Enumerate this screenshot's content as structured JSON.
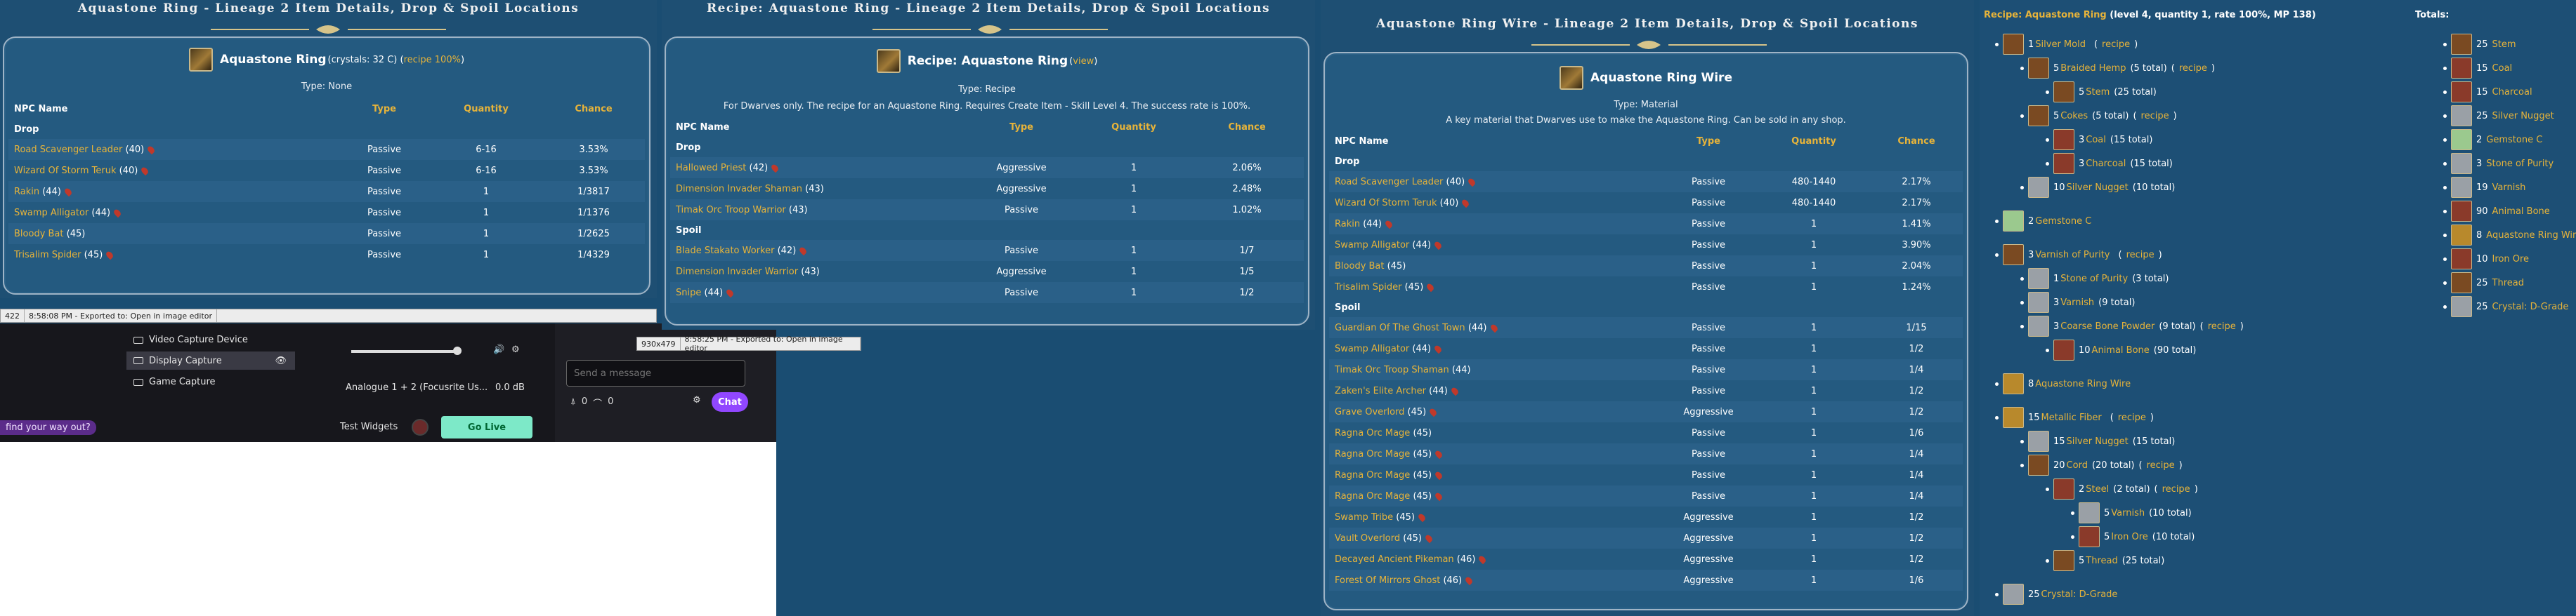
{
  "win1": {
    "title": "Aquastone Ring - Lineage 2 Item Details, Drop & Spoil Locations",
    "item_name": "Aquastone Ring",
    "item_extra_a": " (crystals: 32 C) (",
    "item_extra_link": "recipe 100%",
    "item_extra_b": ")",
    "type_line": "Type: None",
    "headers": {
      "npc": "NPC Name",
      "type": "Type",
      "qty": "Quantity",
      "chance": "Chance"
    },
    "section_drop": "Drop",
    "rows": [
      {
        "npc": "Road Scavenger Leader",
        "lvl": " (40)",
        "type": "Passive",
        "qty": "6-16",
        "chance": "3.53%",
        "pin": true
      },
      {
        "npc": "Wizard Of Storm Teruk",
        "lvl": " (40)",
        "type": "Passive",
        "qty": "6-16",
        "chance": "3.53%",
        "pin": true
      },
      {
        "npc": "Rakin",
        "lvl": " (44)",
        "type": "Passive",
        "qty": "1",
        "chance": "1/3817",
        "pin": true
      },
      {
        "npc": "Swamp Alligator",
        "lvl": " (44)",
        "type": "Passive",
        "qty": "1",
        "chance": "1/1376",
        "pin": true
      },
      {
        "npc": "Bloody Bat",
        "lvl": " (45)",
        "type": "Passive",
        "qty": "1",
        "chance": "1/2625",
        "pin": false
      },
      {
        "npc": "Trisalim Spider",
        "lvl": " (45)",
        "type": "Passive",
        "qty": "1",
        "chance": "1/4329",
        "pin": true
      }
    ],
    "status_a": "422",
    "status_b": "8:58:08 PM - Exported to: Open in image editor"
  },
  "obs": {
    "sources": [
      "Video Capture Device",
      "Display Capture",
      "Game Capture"
    ],
    "audio_label": "Analogue 1 + 2 (Focusrite Us...",
    "audio_db": "0.0 dB",
    "tip": "find your way out?",
    "test_widgets": "Test Widgets",
    "go_live": "Go Live"
  },
  "chat": {
    "placeholder": "Send a message",
    "points": "0",
    "bits": "0",
    "button": "Chat"
  },
  "win2": {
    "title": "Recipe: Aquastone Ring - Lineage 2 Item Details, Drop & Spoil Locations",
    "item_name": "Recipe: Aquastone Ring",
    "item_extra_a": " (",
    "item_extra_link": "view",
    "item_extra_b": ")",
    "type_line": "Type: Recipe",
    "desc": "For Dwarves only. The recipe for an Aquastone Ring. Requires Create Item - Skill Level 4. The success rate is 100%.",
    "headers": {
      "npc": "NPC Name",
      "type": "Type",
      "qty": "Quantity",
      "chance": "Chance"
    },
    "section_drop": "Drop",
    "drop": [
      {
        "npc": "Hallowed Priest",
        "lvl": " (42)",
        "type": "Aggressive",
        "qty": "1",
        "chance": "2.06%",
        "pin": true
      },
      {
        "npc": "Dimension Invader Shaman",
        "lvl": " (43)",
        "type": "Aggressive",
        "qty": "1",
        "chance": "2.48%",
        "pin": false
      },
      {
        "npc": "Timak Orc Troop Warrior",
        "lvl": " (43)",
        "type": "Passive",
        "qty": "1",
        "chance": "1.02%",
        "pin": false
      }
    ],
    "section_spoil": "Spoil",
    "spoil": [
      {
        "npc": "Blade Stakato Worker",
        "lvl": " (42)",
        "type": "Passive",
        "qty": "1",
        "chance": "1/7",
        "pin": true
      },
      {
        "npc": "Dimension Invader Warrior",
        "lvl": " (43)",
        "type": "Aggressive",
        "qty": "1",
        "chance": "1/5",
        "pin": false
      },
      {
        "npc": "Snipe",
        "lvl": " (44)",
        "type": "Passive",
        "qty": "1",
        "chance": "1/2",
        "pin": true
      }
    ],
    "status_a": "930x479",
    "status_b": "8:58:25 PM - Exported to: Open in image editor"
  },
  "win3": {
    "title": "Aquastone Ring Wire - Lineage 2 Item Details, Drop & Spoil Locations",
    "item_name": "Aquastone Ring Wire",
    "type_line": "Type: Material",
    "desc": "A key material that Dwarves use to make the Aquastone Ring. Can be sold in any shop.",
    "headers": {
      "npc": "NPC Name",
      "type": "Type",
      "qty": "Quantity",
      "chance": "Chance"
    },
    "section_drop": "Drop",
    "drop": [
      {
        "npc": "Road Scavenger Leader",
        "lvl": " (40)",
        "type": "Passive",
        "qty": "480-1440",
        "chance": "2.17%",
        "pin": true
      },
      {
        "npc": "Wizard Of Storm Teruk",
        "lvl": " (40)",
        "type": "Passive",
        "qty": "480-1440",
        "chance": "2.17%",
        "pin": true
      },
      {
        "npc": "Rakin",
        "lvl": " (44)",
        "type": "Passive",
        "qty": "1",
        "chance": "1.41%",
        "pin": true
      },
      {
        "npc": "Swamp Alligator",
        "lvl": " (44)",
        "type": "Passive",
        "qty": "1",
        "chance": "3.90%",
        "pin": true
      },
      {
        "npc": "Bloody Bat",
        "lvl": " (45)",
        "type": "Passive",
        "qty": "1",
        "chance": "2.04%",
        "pin": false
      },
      {
        "npc": "Trisalim Spider",
        "lvl": " (45)",
        "type": "Passive",
        "qty": "1",
        "chance": "1.24%",
        "pin": true
      }
    ],
    "section_spoil": "Spoil",
    "spoil": [
      {
        "npc": "Guardian Of The Ghost Town",
        "lvl": " (44)",
        "type": "Passive",
        "qty": "1",
        "chance": "1/15",
        "pin": true
      },
      {
        "npc": "Swamp Alligator",
        "lvl": " (44)",
        "type": "Passive",
        "qty": "1",
        "chance": "1/2",
        "pin": true
      },
      {
        "npc": "Timak Orc Troop Shaman",
        "lvl": " (44)",
        "type": "Passive",
        "qty": "1",
        "chance": "1/4",
        "pin": false
      },
      {
        "npc": "Zaken's Elite Archer",
        "lvl": " (44)",
        "type": "Passive",
        "qty": "1",
        "chance": "1/2",
        "pin": true
      },
      {
        "npc": "Grave Overlord",
        "lvl": " (45)",
        "type": "Aggressive",
        "qty": "1",
        "chance": "1/2",
        "pin": true
      },
      {
        "npc": "Ragna Orc Mage",
        "lvl": " (45)",
        "type": "Passive",
        "qty": "1",
        "chance": "1/6",
        "pin": false
      },
      {
        "npc": "Ragna Orc Mage",
        "lvl": " (45)",
        "type": "Passive",
        "qty": "1",
        "chance": "1/4",
        "pin": true
      },
      {
        "npc": "Ragna Orc Mage",
        "lvl": " (45)",
        "type": "Passive",
        "qty": "1",
        "chance": "1/4",
        "pin": true
      },
      {
        "npc": "Ragna Orc Mage",
        "lvl": " (45)",
        "type": "Passive",
        "qty": "1",
        "chance": "1/4",
        "pin": true
      },
      {
        "npc": "Swamp Tribe",
        "lvl": " (45)",
        "type": "Aggressive",
        "qty": "1",
        "chance": "1/2",
        "pin": true
      },
      {
        "npc": "Vault Overlord",
        "lvl": " (45)",
        "type": "Aggressive",
        "qty": "1",
        "chance": "1/2",
        "pin": true
      },
      {
        "npc": "Decayed Ancient Pikeman",
        "lvl": " (46)",
        "type": "Aggressive",
        "qty": "1",
        "chance": "1/2",
        "pin": true
      },
      {
        "npc": "Forest Of Mirrors Ghost",
        "lvl": " (46)",
        "type": "Aggressive",
        "qty": "1",
        "chance": "1/6",
        "pin": true
      }
    ]
  },
  "tree": {
    "title_link": "Recipe: Aquastone Ring",
    "title_rest": " (level 4, quantity 1, rate 100%, MP 138)",
    "totals_label": "Totals:",
    "colors": {
      "craft": "#7a4a22",
      "gem": "#9bc98e",
      "metal": "#9aa0a6",
      "ore": "#8a3a2a",
      "wire": "#b8892c"
    },
    "nodes": [
      {
        "level": 1,
        "qty": "1 ",
        "name": "Silver Mold",
        "extra": "",
        "recipe": true,
        "icon": "craft"
      },
      {
        "level": 2,
        "qty": "5 ",
        "name": "Braided Hemp",
        "extra": " (5 total)",
        "recipe": true,
        "icon": "craft"
      },
      {
        "level": 3,
        "qty": "5 ",
        "name": "Stem",
        "extra": " (25 total)",
        "recipe": false,
        "icon": "craft"
      },
      {
        "level": 2,
        "qty": "5 ",
        "name": "Cokes",
        "extra": " (5 total)",
        "recipe": true,
        "icon": "craft"
      },
      {
        "level": 3,
        "qty": "3 ",
        "name": "Coal",
        "extra": " (15 total)",
        "recipe": false,
        "icon": "ore"
      },
      {
        "level": 3,
        "qty": "3 ",
        "name": "Charcoal",
        "extra": " (15 total)",
        "recipe": false,
        "icon": "ore"
      },
      {
        "level": 2,
        "qty": "10 ",
        "name": "Silver Nugget",
        "extra": " (10 total)",
        "recipe": false,
        "icon": "metal"
      },
      {
        "level": 1,
        "qty": "2 ",
        "name": "Gemstone C",
        "extra": "",
        "recipe": false,
        "icon": "gem"
      },
      {
        "level": 1,
        "qty": "3 ",
        "name": "Varnish of Purity",
        "extra": "",
        "recipe": true,
        "icon": "craft"
      },
      {
        "level": 2,
        "qty": "1 ",
        "name": "Stone of Purity",
        "extra": " (3 total)",
        "recipe": false,
        "icon": "metal"
      },
      {
        "level": 2,
        "qty": "3 ",
        "name": "Varnish",
        "extra": " (9 total)",
        "recipe": false,
        "icon": "metal"
      },
      {
        "level": 2,
        "qty": "3 ",
        "name": "Coarse Bone Powder",
        "extra": " (9 total)",
        "recipe": true,
        "icon": "metal"
      },
      {
        "level": 3,
        "qty": "10 ",
        "name": "Animal Bone",
        "extra": " (90 total)",
        "recipe": false,
        "icon": "ore"
      },
      {
        "level": 1,
        "qty": "8 ",
        "name": "Aquastone Ring Wire",
        "extra": "",
        "recipe": false,
        "icon": "wire"
      },
      {
        "level": 1,
        "qty": "15 ",
        "name": "Metallic Fiber",
        "extra": "",
        "recipe": true,
        "icon": "wire"
      },
      {
        "level": 2,
        "qty": "15 ",
        "name": "Silver Nugget",
        "extra": " (15 total)",
        "recipe": false,
        "icon": "metal"
      },
      {
        "level": 2,
        "qty": "20 ",
        "name": "Cord",
        "extra": " (20 total)",
        "recipe": true,
        "icon": "craft"
      },
      {
        "level": 3,
        "qty": "2 ",
        "name": "Steel",
        "extra": " (2 total)",
        "recipe": true,
        "icon": "ore"
      },
      {
        "level": 4,
        "qty": "5 ",
        "name": "Varnish",
        "extra": " (10 total)",
        "recipe": false,
        "icon": "metal"
      },
      {
        "level": 4,
        "qty": "5 ",
        "name": "Iron Ore",
        "extra": " (10 total)",
        "recipe": false,
        "icon": "ore"
      },
      {
        "level": 3,
        "qty": "5 ",
        "name": "Thread",
        "extra": " (25 total)",
        "recipe": false,
        "icon": "craft"
      },
      {
        "level": 1,
        "qty": "25 ",
        "name": "Crystal: D-Grade",
        "extra": "",
        "recipe": false,
        "icon": "metal"
      }
    ],
    "recipe_word": "recipe",
    "totals": [
      {
        "qty": "25 ",
        "name": "Stem",
        "icon": "craft"
      },
      {
        "qty": "15 ",
        "name": "Coal",
        "icon": "ore"
      },
      {
        "qty": "15 ",
        "name": "Charcoal",
        "icon": "ore"
      },
      {
        "qty": "25 ",
        "name": "Silver Nugget",
        "icon": "metal"
      },
      {
        "qty": "2 ",
        "name": "Gemstone C",
        "icon": "gem"
      },
      {
        "qty": "3 ",
        "name": "Stone of Purity",
        "icon": "metal"
      },
      {
        "qty": "19 ",
        "name": "Varnish",
        "icon": "metal"
      },
      {
        "qty": "90 ",
        "name": "Animal Bone",
        "icon": "ore"
      },
      {
        "qty": "8 ",
        "name": "Aquastone Ring Wire",
        "icon": "wire"
      },
      {
        "qty": "10 ",
        "name": "Iron Ore",
        "icon": "ore"
      },
      {
        "qty": "25 ",
        "name": "Thread",
        "icon": "craft"
      },
      {
        "qty": "25 ",
        "name": "Crystal: D-Grade",
        "icon": "metal"
      }
    ]
  }
}
